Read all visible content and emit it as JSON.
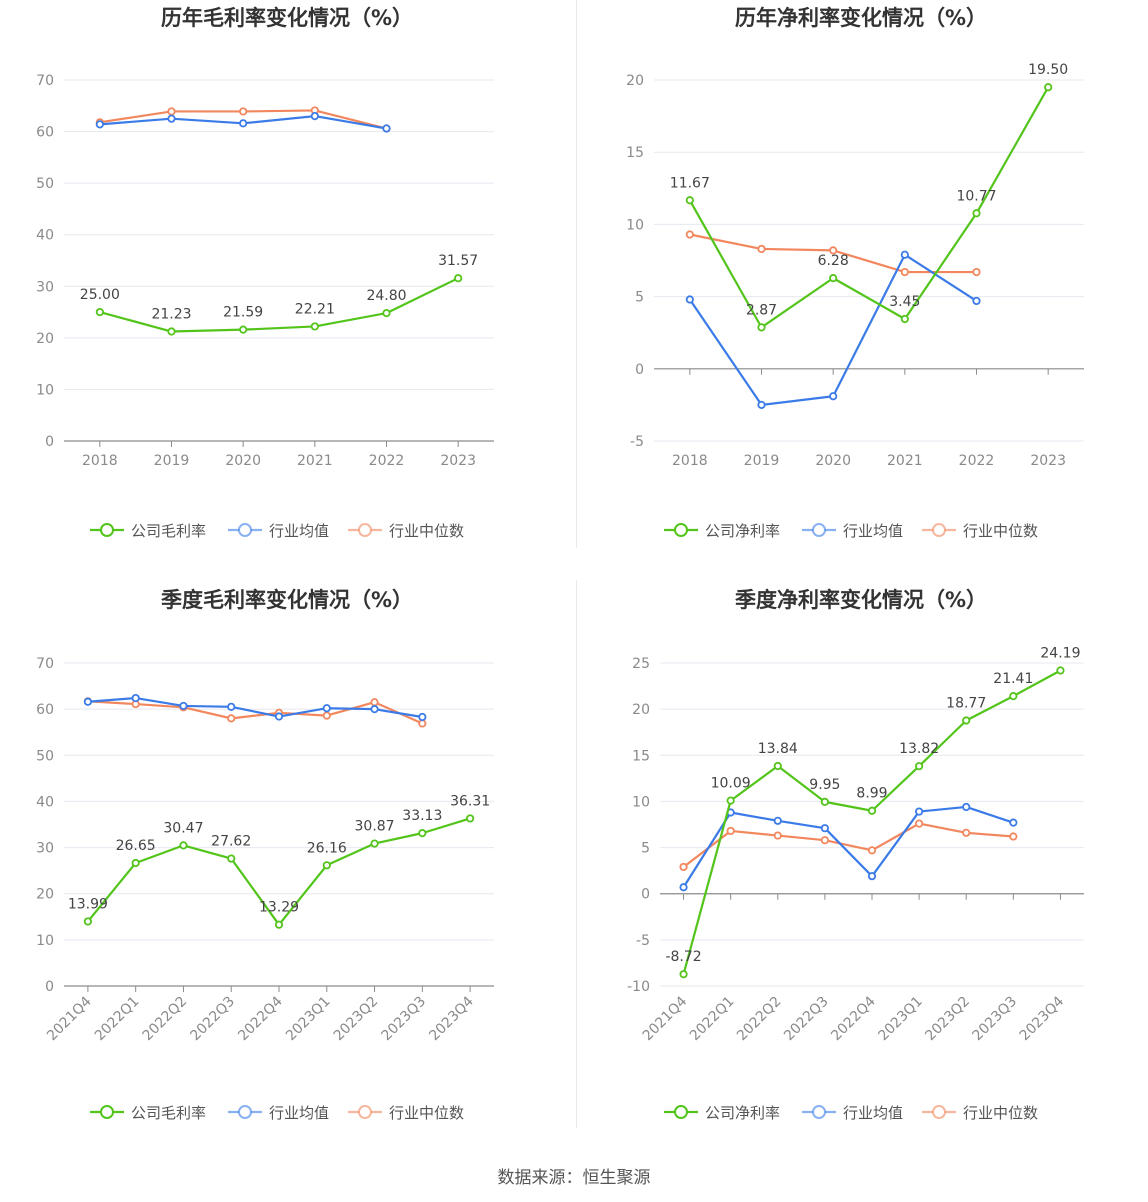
{
  "chart_data": [
    {
      "type": "line",
      "title": "历年毛利率变化情况（%）",
      "categories": [
        "2018",
        "2019",
        "2020",
        "2021",
        "2022",
        "2023"
      ],
      "ylim": [
        0,
        70
      ],
      "yticks": [
        0,
        10,
        20,
        30,
        40,
        50,
        60,
        70
      ],
      "grid": true,
      "legend_position": "bottom",
      "series": [
        {
          "name": "公司毛利率",
          "color": "#52c41a",
          "values": [
            25.0,
            21.23,
            21.59,
            22.21,
            24.8,
            31.57
          ],
          "labels": [
            "25.00",
            "21.23",
            "21.59",
            "22.21",
            "24.80",
            "31.57"
          ]
        },
        {
          "name": "行业均值",
          "color": "#3b7be8",
          "values": [
            61.4,
            62.5,
            61.6,
            63.0,
            60.6,
            null
          ]
        },
        {
          "name": "行业中位数",
          "color": "#f2875e",
          "values": [
            61.8,
            63.9,
            63.9,
            64.1,
            60.6,
            null
          ]
        }
      ]
    },
    {
      "type": "line",
      "title": "历年净利率变化情况（%）",
      "categories": [
        "2018",
        "2019",
        "2020",
        "2021",
        "2022",
        "2023"
      ],
      "ylim": [
        -5,
        20
      ],
      "yticks": [
        -5,
        0,
        5,
        10,
        15,
        20
      ],
      "grid": true,
      "legend_position": "bottom",
      "series": [
        {
          "name": "公司净利率",
          "color": "#52c41a",
          "values": [
            11.67,
            2.87,
            6.28,
            3.45,
            10.77,
            19.5
          ],
          "labels": [
            "11.67",
            "2.87",
            "6.28",
            "3.45",
            "10.77",
            "19.50"
          ]
        },
        {
          "name": "行业均值",
          "color": "#3b7be8",
          "values": [
            4.8,
            -2.5,
            -1.9,
            7.9,
            4.7,
            null
          ]
        },
        {
          "name": "行业中位数",
          "color": "#f2875e",
          "values": [
            9.3,
            8.3,
            8.2,
            6.7,
            6.7,
            null
          ]
        }
      ]
    },
    {
      "type": "line",
      "title": "季度毛利率变化情况（%）",
      "categories": [
        "2021Q4",
        "2022Q1",
        "2022Q2",
        "2022Q3",
        "2022Q4",
        "2023Q1",
        "2023Q2",
        "2023Q3",
        "2023Q4"
      ],
      "ylim": [
        0,
        70
      ],
      "yticks": [
        0,
        10,
        20,
        30,
        40,
        50,
        60,
        70
      ],
      "grid": true,
      "legend_position": "bottom",
      "series": [
        {
          "name": "公司毛利率",
          "color": "#52c41a",
          "values": [
            13.99,
            26.65,
            30.47,
            27.62,
            13.29,
            26.16,
            30.87,
            33.13,
            36.31
          ],
          "labels": [
            "13.99",
            "26.65",
            "30.47",
            "27.62",
            "13.29",
            "26.16",
            "30.87",
            "33.13",
            "36.31"
          ]
        },
        {
          "name": "行业均值",
          "color": "#3b7be8",
          "values": [
            61.6,
            62.4,
            60.7,
            60.5,
            58.4,
            60.2,
            60.0,
            58.3,
            null
          ]
        },
        {
          "name": "行业中位数",
          "color": "#f2875e",
          "values": [
            61.7,
            61.1,
            60.4,
            58.0,
            59.2,
            58.6,
            61.5,
            56.9,
            null
          ]
        }
      ]
    },
    {
      "type": "line",
      "title": "季度净利率变化情况（%）",
      "categories": [
        "2021Q4",
        "2022Q1",
        "2022Q2",
        "2022Q3",
        "2022Q4",
        "2023Q1",
        "2023Q2",
        "2023Q3",
        "2023Q4"
      ],
      "ylim": [
        -10,
        25
      ],
      "yticks": [
        -10,
        -5,
        0,
        5,
        10,
        15,
        20,
        25
      ],
      "grid": true,
      "legend_position": "bottom",
      "series": [
        {
          "name": "公司净利率",
          "color": "#52c41a",
          "values": [
            -8.72,
            10.09,
            13.84,
            9.95,
            8.99,
            13.82,
            18.77,
            21.41,
            24.19
          ],
          "labels": [
            "-8.72",
            "10.09",
            "13.84",
            "9.95",
            "8.99",
            "13.82",
            "18.77",
            "21.41",
            "24.19"
          ]
        },
        {
          "name": "行业均值",
          "color": "#3b7be8",
          "values": [
            0.7,
            8.8,
            7.9,
            7.1,
            1.9,
            8.9,
            9.4,
            7.7,
            null
          ]
        },
        {
          "name": "行业中位数",
          "color": "#f2875e",
          "values": [
            2.9,
            6.8,
            6.3,
            5.8,
            4.7,
            7.6,
            6.6,
            6.2,
            null
          ]
        }
      ]
    }
  ],
  "footer": {
    "source": "数据来源：恒生聚源"
  }
}
